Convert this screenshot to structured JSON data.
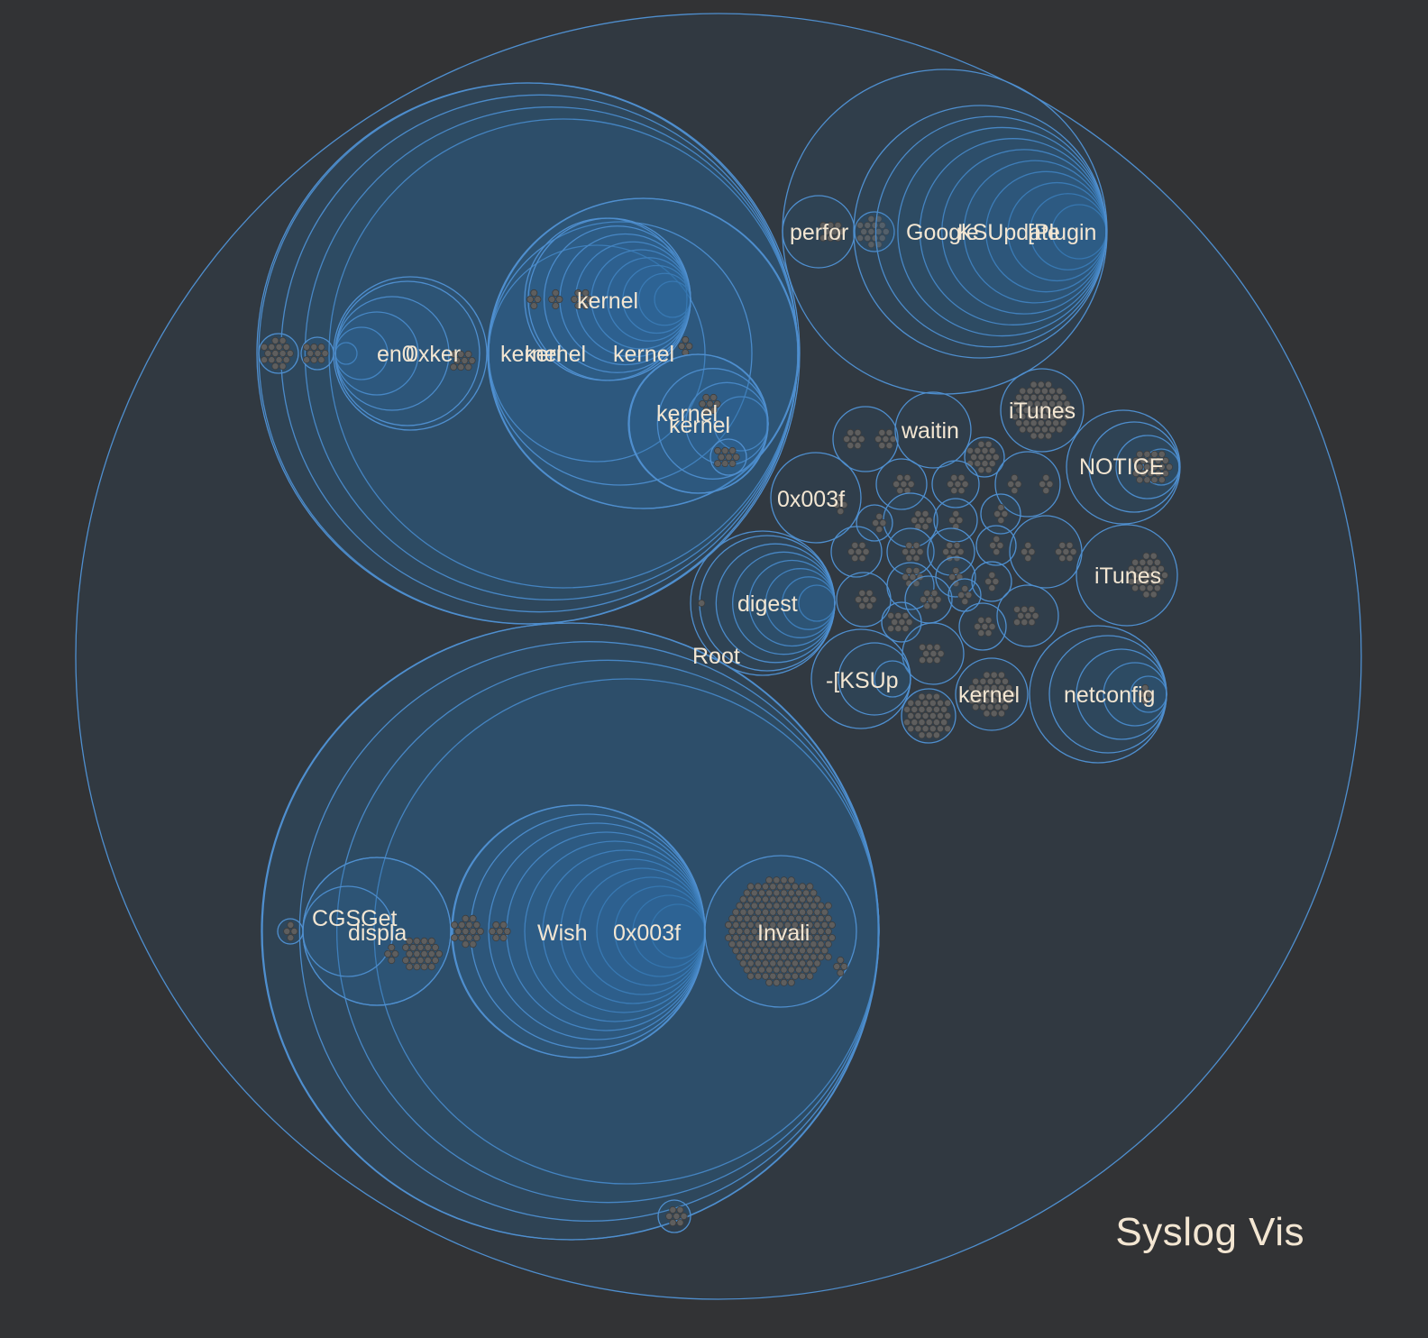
{
  "title": "Syslog Vis",
  "colors": {
    "background": "#323335",
    "stroke": "#4f8fcf",
    "fill": "#2a6fa8",
    "leaf": "#5e5e5e",
    "text": "#f3e6d2"
  },
  "root_label": "Root",
  "labels": {
    "perfor": "perfor",
    "google": "Google",
    "ksupdate": "KSUpdate",
    "plugin": "[Plugin",
    "kernel_cluster": "kernel",
    "en0": "en0",
    "0x_ker": "0xker",
    "kernel_a": "kernel",
    "kernel_b": "kernel",
    "kernel_c": "kernel",
    "kernel_d": "kernel",
    "waitin": "waitin",
    "itunes_top": "iTunes",
    "notice": "NOTICE",
    "hex_003f": "0x003f",
    "itunes_mid": "iTunes",
    "digest": "digest",
    "ksup": "-[KSUp",
    "kernel_e": "kernel",
    "netconfig": "netconfig",
    "cgsget": "CGSGet",
    "displa": "displa",
    "wish": "Wish",
    "hex_mix": "0x003f",
    "invali": "Invali"
  }
}
